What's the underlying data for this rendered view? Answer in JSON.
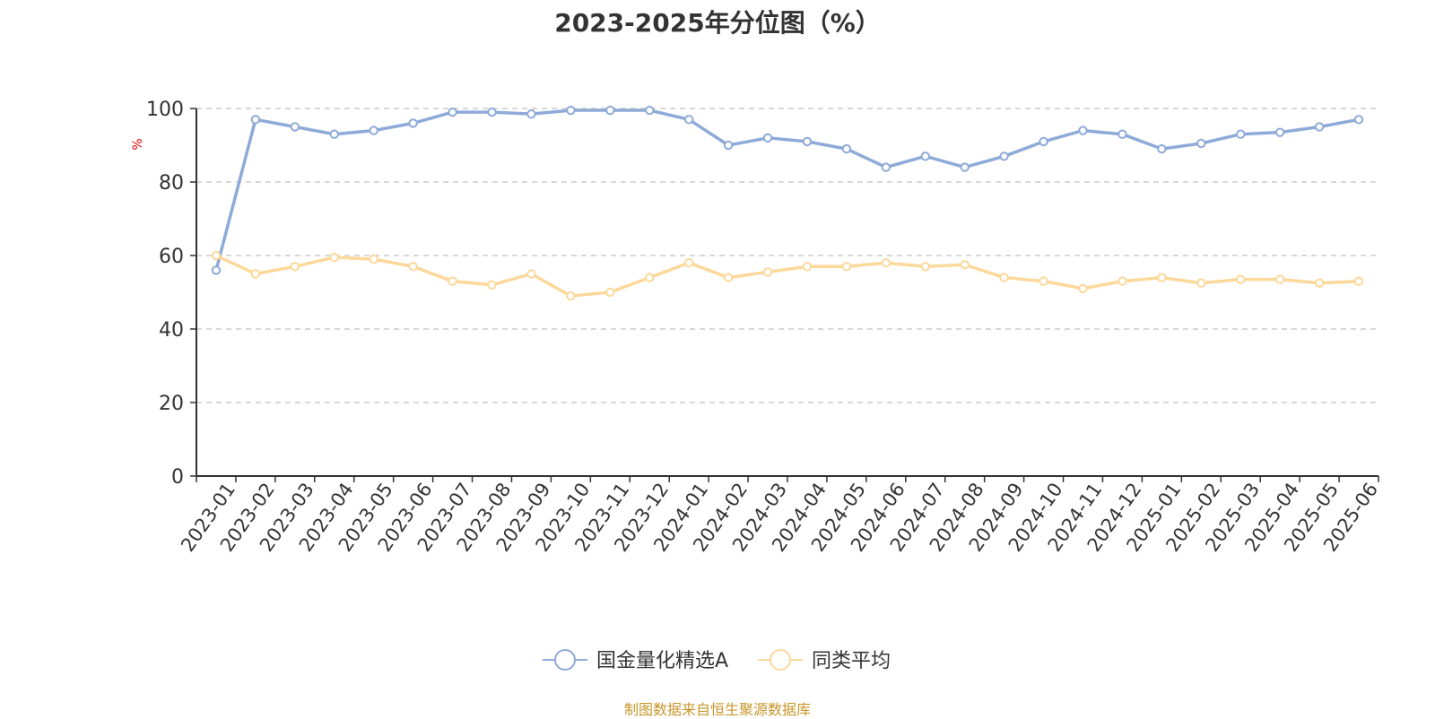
{
  "chart_data": {
    "type": "line",
    "title": "2023-2025年分位图（%）",
    "ylabel": "%",
    "ylim": [
      0,
      100
    ],
    "yticks": [
      "0",
      "20",
      "40",
      "60",
      "80",
      "100"
    ],
    "ytick_values": [
      0,
      20,
      40,
      60,
      80,
      100
    ],
    "grid": true,
    "legend_position": "bottom-center",
    "categories": [
      "2023-01",
      "2023-02",
      "2023-03",
      "2023-04",
      "2023-05",
      "2023-06",
      "2023-07",
      "2023-08",
      "2023-09",
      "2023-10",
      "2023-11",
      "2023-12",
      "2024-01",
      "2024-02",
      "2024-03",
      "2024-04",
      "2024-05",
      "2024-06",
      "2024-07",
      "2024-08",
      "2024-09",
      "2024-10",
      "2024-11",
      "2024-12",
      "2025-01",
      "2025-02",
      "2025-03",
      "2025-04",
      "2025-05",
      "2025-06"
    ],
    "series": [
      {
        "name": "国金量化精选A",
        "color": "#8eaad8",
        "values": [
          56,
          97,
          95,
          93,
          94,
          96,
          99,
          99,
          98.5,
          99.5,
          99.5,
          99.5,
          97,
          90,
          92,
          91,
          89,
          84,
          87,
          84,
          87,
          91,
          94,
          93,
          89,
          90.5,
          93,
          93.5,
          95,
          97
        ]
      },
      {
        "name": "同类平均",
        "color": "#fcd89a",
        "values": [
          60,
          55,
          57,
          59.5,
          59,
          57,
          53,
          52,
          55,
          49,
          50,
          54,
          58,
          54,
          55.5,
          57,
          57,
          58,
          57,
          57.5,
          54,
          53,
          51,
          53,
          54,
          52.5,
          53.5,
          53.5,
          52.5,
          53
        ]
      }
    ],
    "source": "制图数据来自恒生聚源数据库"
  }
}
